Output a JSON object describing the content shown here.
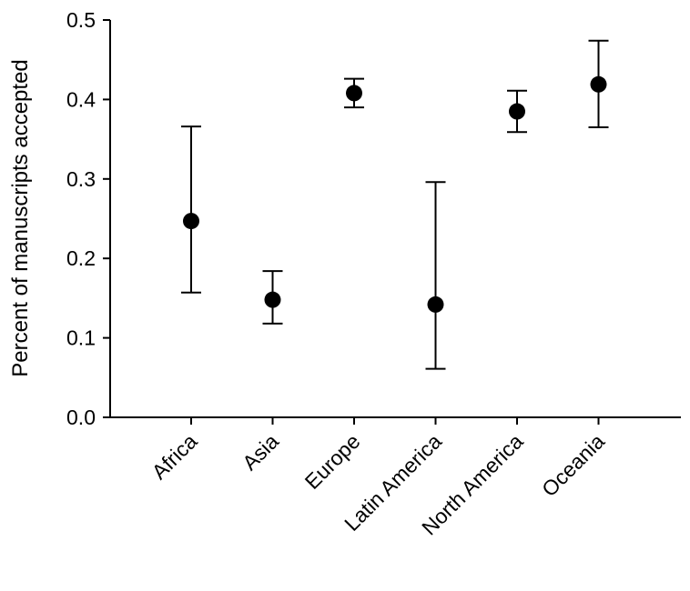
{
  "chart_data": {
    "type": "scatter",
    "title": "",
    "xlabel": "",
    "ylabel": "Percent of manuscripts accepted",
    "categories": [
      "Africa",
      "Asia",
      "Europe",
      "Latin America",
      "North America",
      "Oceania"
    ],
    "values": [
      0.247,
      0.148,
      0.408,
      0.142,
      0.385,
      0.419
    ],
    "error_low": [
      0.157,
      0.118,
      0.39,
      0.061,
      0.359,
      0.365
    ],
    "error_high": [
      0.366,
      0.184,
      0.426,
      0.296,
      0.411,
      0.474
    ],
    "ylim": [
      0.0,
      0.5
    ],
    "yticks": [
      "0.0",
      "0.1",
      "0.2",
      "0.3",
      "0.4",
      "0.5"
    ],
    "grid": false,
    "marker_color": "#000000"
  }
}
